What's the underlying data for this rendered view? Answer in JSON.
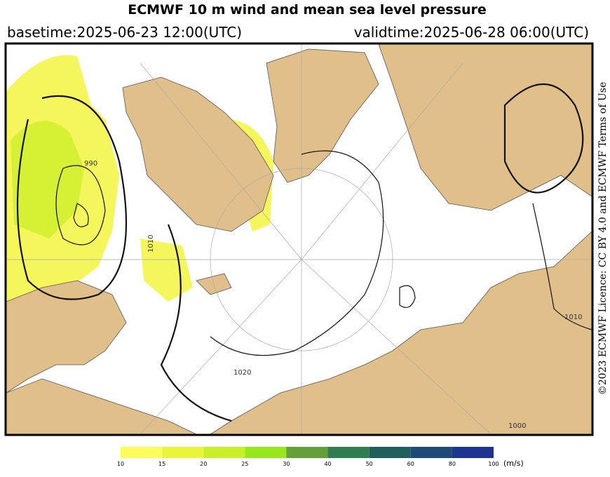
{
  "header": {
    "title": "ECMWF 10 m wind and mean sea level pressure",
    "basetime": "basetime:2025-06-23 12:00(UTC)",
    "validtime": "validtime:2025-06-28 06:00(UTC)"
  },
  "license": "©2023 ECMWF Licence: CC BY 4.0 and ECMWF Terms of Use",
  "contour_labels": [
    "990",
    "1010",
    "1020",
    "1010",
    "1000"
  ],
  "colorbar": {
    "levels": [
      10,
      15,
      20,
      25,
      30,
      40,
      50,
      60,
      80,
      100
    ],
    "colors": [
      "#fbfb5a",
      "#e8f53a",
      "#c8ef28",
      "#98e61e",
      "#63a03a",
      "#2f7d50",
      "#1f5f5c",
      "#1f4a78",
      "#1d3590"
    ],
    "unit": "(m/s)"
  }
}
